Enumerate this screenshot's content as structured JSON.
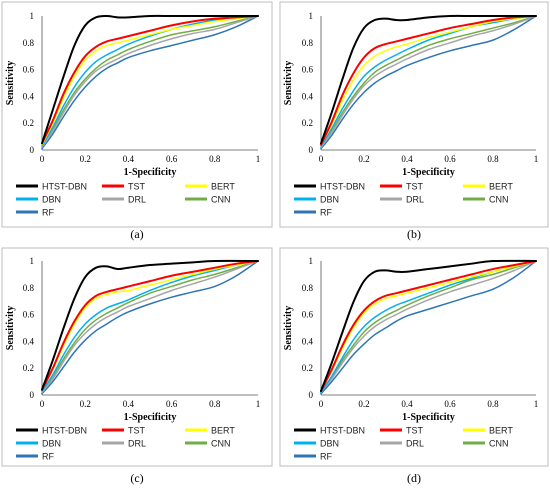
{
  "colors": {
    "HTST-DBN": "#000000",
    "TST": "#ff0000",
    "BERT": "#ffff00",
    "DBN": "#00b0f0",
    "DRL": "#a6a6a6",
    "CNN": "#70ad47",
    "RF": "#2e75b6"
  },
  "chart_data": [
    {
      "type": "line",
      "panel": "(a)",
      "xlabel": "1-Specificity",
      "ylabel": "Sensitivity",
      "xlim": [
        0,
        1
      ],
      "ylim": [
        0,
        1
      ],
      "x_ticks": [
        "0",
        "0.2",
        "0.4",
        "0.6",
        "0.8",
        "1"
      ],
      "y_ticks": [
        "0",
        "0.2",
        "0.4",
        "0.6",
        "0.8",
        "1"
      ],
      "grid": false,
      "legend_position": "bottom",
      "series": [
        {
          "name": "HTST-DBN",
          "x": [
            0,
            0.05,
            0.1,
            0.15,
            0.2,
            0.25,
            0.3,
            0.35,
            0.4,
            0.5,
            0.6,
            0.7,
            0.8,
            1
          ],
          "y": [
            0.05,
            0.3,
            0.55,
            0.78,
            0.93,
            0.99,
            1.0,
            0.99,
            0.99,
            1.0,
            1.0,
            1.0,
            1.0,
            1.0
          ]
        },
        {
          "name": "TST",
          "x": [
            0,
            0.05,
            0.1,
            0.15,
            0.2,
            0.25,
            0.3,
            0.35,
            0.4,
            0.5,
            0.6,
            0.7,
            0.8,
            0.9,
            1
          ],
          "y": [
            0.05,
            0.22,
            0.42,
            0.58,
            0.7,
            0.77,
            0.81,
            0.83,
            0.85,
            0.89,
            0.93,
            0.96,
            0.98,
            0.99,
            1.0
          ]
        },
        {
          "name": "BERT",
          "x": [
            0,
            0.05,
            0.1,
            0.15,
            0.2,
            0.25,
            0.3,
            0.35,
            0.4,
            0.5,
            0.6,
            0.7,
            0.8,
            0.9,
            1
          ],
          "y": [
            0.04,
            0.2,
            0.39,
            0.55,
            0.67,
            0.74,
            0.78,
            0.8,
            0.82,
            0.86,
            0.9,
            0.93,
            0.96,
            0.98,
            1.0
          ]
        },
        {
          "name": "DBN",
          "x": [
            0,
            0.05,
            0.1,
            0.15,
            0.2,
            0.25,
            0.3,
            0.35,
            0.4,
            0.5,
            0.6,
            0.7,
            0.8,
            0.9,
            1
          ],
          "y": [
            0.03,
            0.17,
            0.33,
            0.47,
            0.58,
            0.66,
            0.71,
            0.75,
            0.79,
            0.85,
            0.9,
            0.94,
            0.97,
            0.99,
            1.0
          ]
        },
        {
          "name": "DRL",
          "x": [
            0,
            0.05,
            0.1,
            0.15,
            0.2,
            0.25,
            0.3,
            0.35,
            0.4,
            0.5,
            0.6,
            0.7,
            0.8,
            0.9,
            1
          ],
          "y": [
            0.02,
            0.14,
            0.28,
            0.41,
            0.51,
            0.59,
            0.64,
            0.68,
            0.72,
            0.78,
            0.83,
            0.87,
            0.9,
            0.95,
            1.0
          ]
        },
        {
          "name": "CNN",
          "x": [
            0,
            0.05,
            0.1,
            0.15,
            0.2,
            0.25,
            0.3,
            0.35,
            0.4,
            0.5,
            0.6,
            0.7,
            0.8,
            0.9,
            1
          ],
          "y": [
            0.03,
            0.15,
            0.3,
            0.43,
            0.53,
            0.61,
            0.67,
            0.71,
            0.75,
            0.81,
            0.86,
            0.89,
            0.92,
            0.96,
            1.0
          ]
        },
        {
          "name": "RF",
          "x": [
            0,
            0.05,
            0.1,
            0.15,
            0.2,
            0.25,
            0.3,
            0.35,
            0.4,
            0.5,
            0.6,
            0.7,
            0.8,
            0.9,
            1
          ],
          "y": [
            0.01,
            0.12,
            0.25,
            0.37,
            0.47,
            0.55,
            0.61,
            0.65,
            0.69,
            0.74,
            0.78,
            0.82,
            0.86,
            0.92,
            1.0
          ]
        }
      ]
    },
    {
      "type": "line",
      "panel": "(b)",
      "xlabel": "1-Specificity",
      "ylabel": "Sensitivity",
      "xlim": [
        0,
        1
      ],
      "ylim": [
        0,
        1
      ],
      "x_ticks": [
        "0",
        "0.2",
        "0.4",
        "0.6",
        "0.8",
        "1"
      ],
      "y_ticks": [
        "0",
        "0.2",
        "0.4",
        "0.6",
        "0.8",
        "1"
      ],
      "grid": false,
      "legend_position": "bottom",
      "series": [
        {
          "name": "HTST-DBN",
          "x": [
            0,
            0.05,
            0.1,
            0.15,
            0.2,
            0.25,
            0.3,
            0.35,
            0.4,
            0.5,
            0.6,
            0.7,
            0.8,
            1
          ],
          "y": [
            0.05,
            0.28,
            0.53,
            0.76,
            0.91,
            0.97,
            0.98,
            0.97,
            0.97,
            0.99,
            1.0,
            1.0,
            1.0,
            1.0
          ]
        },
        {
          "name": "TST",
          "x": [
            0,
            0.05,
            0.1,
            0.15,
            0.2,
            0.25,
            0.3,
            0.35,
            0.4,
            0.5,
            0.6,
            0.7,
            0.8,
            0.9,
            1
          ],
          "y": [
            0.04,
            0.21,
            0.41,
            0.57,
            0.69,
            0.76,
            0.79,
            0.81,
            0.83,
            0.87,
            0.91,
            0.94,
            0.97,
            0.99,
            1.0
          ]
        },
        {
          "name": "BERT",
          "x": [
            0,
            0.05,
            0.1,
            0.15,
            0.2,
            0.25,
            0.3,
            0.35,
            0.4,
            0.5,
            0.6,
            0.7,
            0.8,
            0.9,
            1
          ],
          "y": [
            0.04,
            0.19,
            0.37,
            0.52,
            0.63,
            0.7,
            0.74,
            0.77,
            0.79,
            0.84,
            0.88,
            0.92,
            0.96,
            0.98,
            1.0
          ]
        },
        {
          "name": "DBN",
          "x": [
            0,
            0.05,
            0.1,
            0.15,
            0.2,
            0.25,
            0.3,
            0.35,
            0.4,
            0.5,
            0.6,
            0.7,
            0.8,
            0.9,
            1
          ],
          "y": [
            0.03,
            0.16,
            0.31,
            0.44,
            0.55,
            0.62,
            0.67,
            0.71,
            0.75,
            0.82,
            0.87,
            0.92,
            0.95,
            0.98,
            1.0
          ]
        },
        {
          "name": "DRL",
          "x": [
            0,
            0.05,
            0.1,
            0.15,
            0.2,
            0.25,
            0.3,
            0.35,
            0.4,
            0.5,
            0.6,
            0.7,
            0.8,
            0.9,
            1
          ],
          "y": [
            0.02,
            0.13,
            0.26,
            0.38,
            0.48,
            0.55,
            0.6,
            0.64,
            0.68,
            0.75,
            0.8,
            0.85,
            0.89,
            0.94,
            1.0
          ]
        },
        {
          "name": "CNN",
          "x": [
            0,
            0.05,
            0.1,
            0.15,
            0.2,
            0.25,
            0.3,
            0.35,
            0.4,
            0.5,
            0.6,
            0.7,
            0.8,
            0.9,
            1
          ],
          "y": [
            0.02,
            0.14,
            0.28,
            0.4,
            0.5,
            0.58,
            0.63,
            0.67,
            0.71,
            0.78,
            0.83,
            0.87,
            0.91,
            0.95,
            1.0
          ]
        },
        {
          "name": "RF",
          "x": [
            0,
            0.05,
            0.1,
            0.15,
            0.2,
            0.25,
            0.3,
            0.35,
            0.4,
            0.5,
            0.6,
            0.7,
            0.8,
            0.9,
            1
          ],
          "y": [
            0.01,
            0.11,
            0.23,
            0.34,
            0.43,
            0.5,
            0.55,
            0.59,
            0.63,
            0.69,
            0.74,
            0.78,
            0.82,
            0.9,
            1.0
          ]
        }
      ]
    },
    {
      "type": "line",
      "panel": "(c)",
      "xlabel": "1-Specificity",
      "ylabel": "Sensitivity",
      "xlim": [
        0,
        1
      ],
      "ylim": [
        0,
        1
      ],
      "x_ticks": [
        "0",
        "0.2",
        "0.4",
        "0.6",
        "0.8",
        "1"
      ],
      "y_ticks": [
        "0",
        "0.2",
        "0.4",
        "0.6",
        "0.8",
        "1"
      ],
      "grid": false,
      "legend_position": "bottom",
      "series": [
        {
          "name": "HTST-DBN",
          "x": [
            0,
            0.05,
            0.1,
            0.15,
            0.2,
            0.25,
            0.3,
            0.35,
            0.4,
            0.5,
            0.6,
            0.7,
            0.8,
            1
          ],
          "y": [
            0.04,
            0.26,
            0.5,
            0.72,
            0.88,
            0.95,
            0.96,
            0.94,
            0.95,
            0.97,
            0.98,
            0.99,
            1.0,
            1.0
          ]
        },
        {
          "name": "TST",
          "x": [
            0,
            0.05,
            0.1,
            0.15,
            0.2,
            0.25,
            0.3,
            0.35,
            0.4,
            0.5,
            0.6,
            0.7,
            0.8,
            0.9,
            1
          ],
          "y": [
            0.04,
            0.2,
            0.39,
            0.55,
            0.67,
            0.74,
            0.77,
            0.79,
            0.81,
            0.85,
            0.89,
            0.92,
            0.95,
            0.98,
            1.0
          ]
        },
        {
          "name": "BERT",
          "x": [
            0,
            0.05,
            0.1,
            0.15,
            0.2,
            0.25,
            0.3,
            0.35,
            0.4,
            0.5,
            0.6,
            0.7,
            0.8,
            0.9,
            1
          ],
          "y": [
            0.04,
            0.19,
            0.37,
            0.53,
            0.65,
            0.72,
            0.75,
            0.77,
            0.78,
            0.82,
            0.86,
            0.9,
            0.94,
            0.97,
            1.0
          ]
        },
        {
          "name": "DBN",
          "x": [
            0,
            0.05,
            0.1,
            0.15,
            0.2,
            0.25,
            0.3,
            0.35,
            0.4,
            0.5,
            0.6,
            0.7,
            0.8,
            0.9,
            1
          ],
          "y": [
            0.03,
            0.15,
            0.3,
            0.43,
            0.53,
            0.6,
            0.65,
            0.68,
            0.71,
            0.78,
            0.84,
            0.89,
            0.93,
            0.97,
            1.0
          ]
        },
        {
          "name": "DRL",
          "x": [
            0,
            0.05,
            0.1,
            0.15,
            0.2,
            0.25,
            0.3,
            0.35,
            0.4,
            0.5,
            0.6,
            0.7,
            0.8,
            0.9,
            1
          ],
          "y": [
            0.02,
            0.12,
            0.25,
            0.37,
            0.46,
            0.53,
            0.58,
            0.62,
            0.66,
            0.72,
            0.78,
            0.83,
            0.88,
            0.94,
            1.0
          ]
        },
        {
          "name": "CNN",
          "x": [
            0,
            0.05,
            0.1,
            0.15,
            0.2,
            0.25,
            0.3,
            0.35,
            0.4,
            0.5,
            0.6,
            0.7,
            0.8,
            0.9,
            1
          ],
          "y": [
            0.02,
            0.13,
            0.27,
            0.39,
            0.49,
            0.56,
            0.61,
            0.65,
            0.69,
            0.76,
            0.81,
            0.86,
            0.9,
            0.95,
            1.0
          ]
        },
        {
          "name": "RF",
          "x": [
            0,
            0.05,
            0.1,
            0.15,
            0.2,
            0.25,
            0.3,
            0.35,
            0.4,
            0.5,
            0.6,
            0.7,
            0.8,
            0.9,
            1
          ],
          "y": [
            0.01,
            0.1,
            0.21,
            0.32,
            0.41,
            0.48,
            0.53,
            0.58,
            0.62,
            0.68,
            0.73,
            0.77,
            0.81,
            0.89,
            1.0
          ]
        }
      ]
    },
    {
      "type": "line",
      "panel": "(d)",
      "xlabel": "1-Specificity",
      "ylabel": "Sensitivity",
      "xlim": [
        0,
        1
      ],
      "ylim": [
        0,
        1
      ],
      "x_ticks": [
        "0",
        "0.2",
        "0.4",
        "0.6",
        "0.8",
        "1"
      ],
      "y_ticks": [
        "0",
        "0.2",
        "0.4",
        "0.6",
        "0.8",
        "1"
      ],
      "grid": false,
      "legend_position": "bottom",
      "series": [
        {
          "name": "HTST-DBN",
          "x": [
            0,
            0.05,
            0.1,
            0.15,
            0.2,
            0.25,
            0.3,
            0.35,
            0.4,
            0.5,
            0.6,
            0.7,
            0.8,
            1
          ],
          "y": [
            0.03,
            0.24,
            0.47,
            0.69,
            0.85,
            0.92,
            0.93,
            0.92,
            0.92,
            0.94,
            0.96,
            0.98,
            1.0,
            1.0
          ]
        },
        {
          "name": "TST",
          "x": [
            0,
            0.05,
            0.1,
            0.15,
            0.2,
            0.25,
            0.3,
            0.35,
            0.4,
            0.5,
            0.6,
            0.7,
            0.8,
            0.9,
            1
          ],
          "y": [
            0.03,
            0.19,
            0.37,
            0.52,
            0.63,
            0.7,
            0.74,
            0.76,
            0.78,
            0.82,
            0.86,
            0.9,
            0.94,
            0.97,
            1.0
          ]
        },
        {
          "name": "BERT",
          "x": [
            0,
            0.05,
            0.1,
            0.15,
            0.2,
            0.25,
            0.3,
            0.35,
            0.4,
            0.5,
            0.6,
            0.7,
            0.8,
            0.9,
            1
          ],
          "y": [
            0.03,
            0.18,
            0.35,
            0.5,
            0.61,
            0.68,
            0.72,
            0.74,
            0.76,
            0.8,
            0.84,
            0.88,
            0.92,
            0.96,
            1.0
          ]
        },
        {
          "name": "DBN",
          "x": [
            0,
            0.05,
            0.1,
            0.15,
            0.2,
            0.25,
            0.3,
            0.35,
            0.4,
            0.5,
            0.6,
            0.7,
            0.8,
            0.9,
            1
          ],
          "y": [
            0.02,
            0.14,
            0.28,
            0.41,
            0.51,
            0.58,
            0.63,
            0.67,
            0.7,
            0.76,
            0.82,
            0.87,
            0.92,
            0.96,
            1.0
          ]
        },
        {
          "name": "DRL",
          "x": [
            0,
            0.05,
            0.1,
            0.15,
            0.2,
            0.25,
            0.3,
            0.35,
            0.4,
            0.5,
            0.6,
            0.7,
            0.8,
            0.9,
            1
          ],
          "y": [
            0.02,
            0.12,
            0.24,
            0.35,
            0.44,
            0.51,
            0.56,
            0.6,
            0.64,
            0.71,
            0.77,
            0.82,
            0.87,
            0.93,
            1.0
          ]
        },
        {
          "name": "CNN",
          "x": [
            0,
            0.05,
            0.1,
            0.15,
            0.2,
            0.25,
            0.3,
            0.35,
            0.4,
            0.5,
            0.6,
            0.7,
            0.8,
            0.9,
            1
          ],
          "y": [
            0.02,
            0.13,
            0.26,
            0.37,
            0.47,
            0.54,
            0.59,
            0.63,
            0.67,
            0.74,
            0.8,
            0.86,
            0.9,
            0.95,
            1.0
          ]
        },
        {
          "name": "RF",
          "x": [
            0,
            0.05,
            0.1,
            0.15,
            0.2,
            0.25,
            0.3,
            0.35,
            0.4,
            0.5,
            0.6,
            0.7,
            0.8,
            0.9,
            1
          ],
          "y": [
            0.01,
            0.1,
            0.2,
            0.3,
            0.38,
            0.45,
            0.5,
            0.55,
            0.59,
            0.64,
            0.69,
            0.74,
            0.79,
            0.88,
            1.0
          ]
        }
      ]
    }
  ]
}
